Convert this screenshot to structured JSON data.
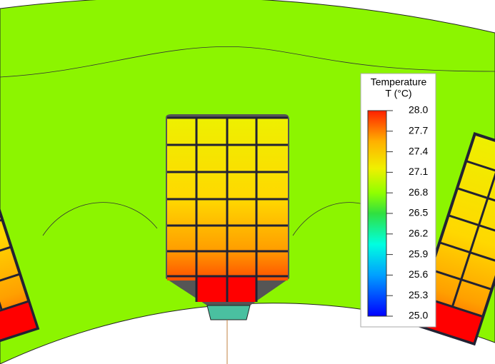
{
  "chart_data": {
    "type": "contour",
    "title": "Temperature",
    "subtitle": "T (°C)",
    "clim": [
      25,
      28
    ],
    "cticks": [
      {
        "value": 25,
        "label": "25.0"
      },
      {
        "value": 25.3,
        "label": "25.3"
      },
      {
        "value": 25.6,
        "label": "25.6"
      },
      {
        "value": 25.9,
        "label": "25.9"
      },
      {
        "value": 26.2,
        "label": "26.2"
      },
      {
        "value": 26.5,
        "label": "26.5"
      },
      {
        "value": 26.8,
        "label": "26.8"
      },
      {
        "value": 27.1,
        "label": "27.1"
      },
      {
        "value": 27.4,
        "label": "27.4"
      },
      {
        "value": 27.7,
        "label": "27.7"
      },
      {
        "value": 28,
        "label": "28.0"
      }
    ]
  }
}
